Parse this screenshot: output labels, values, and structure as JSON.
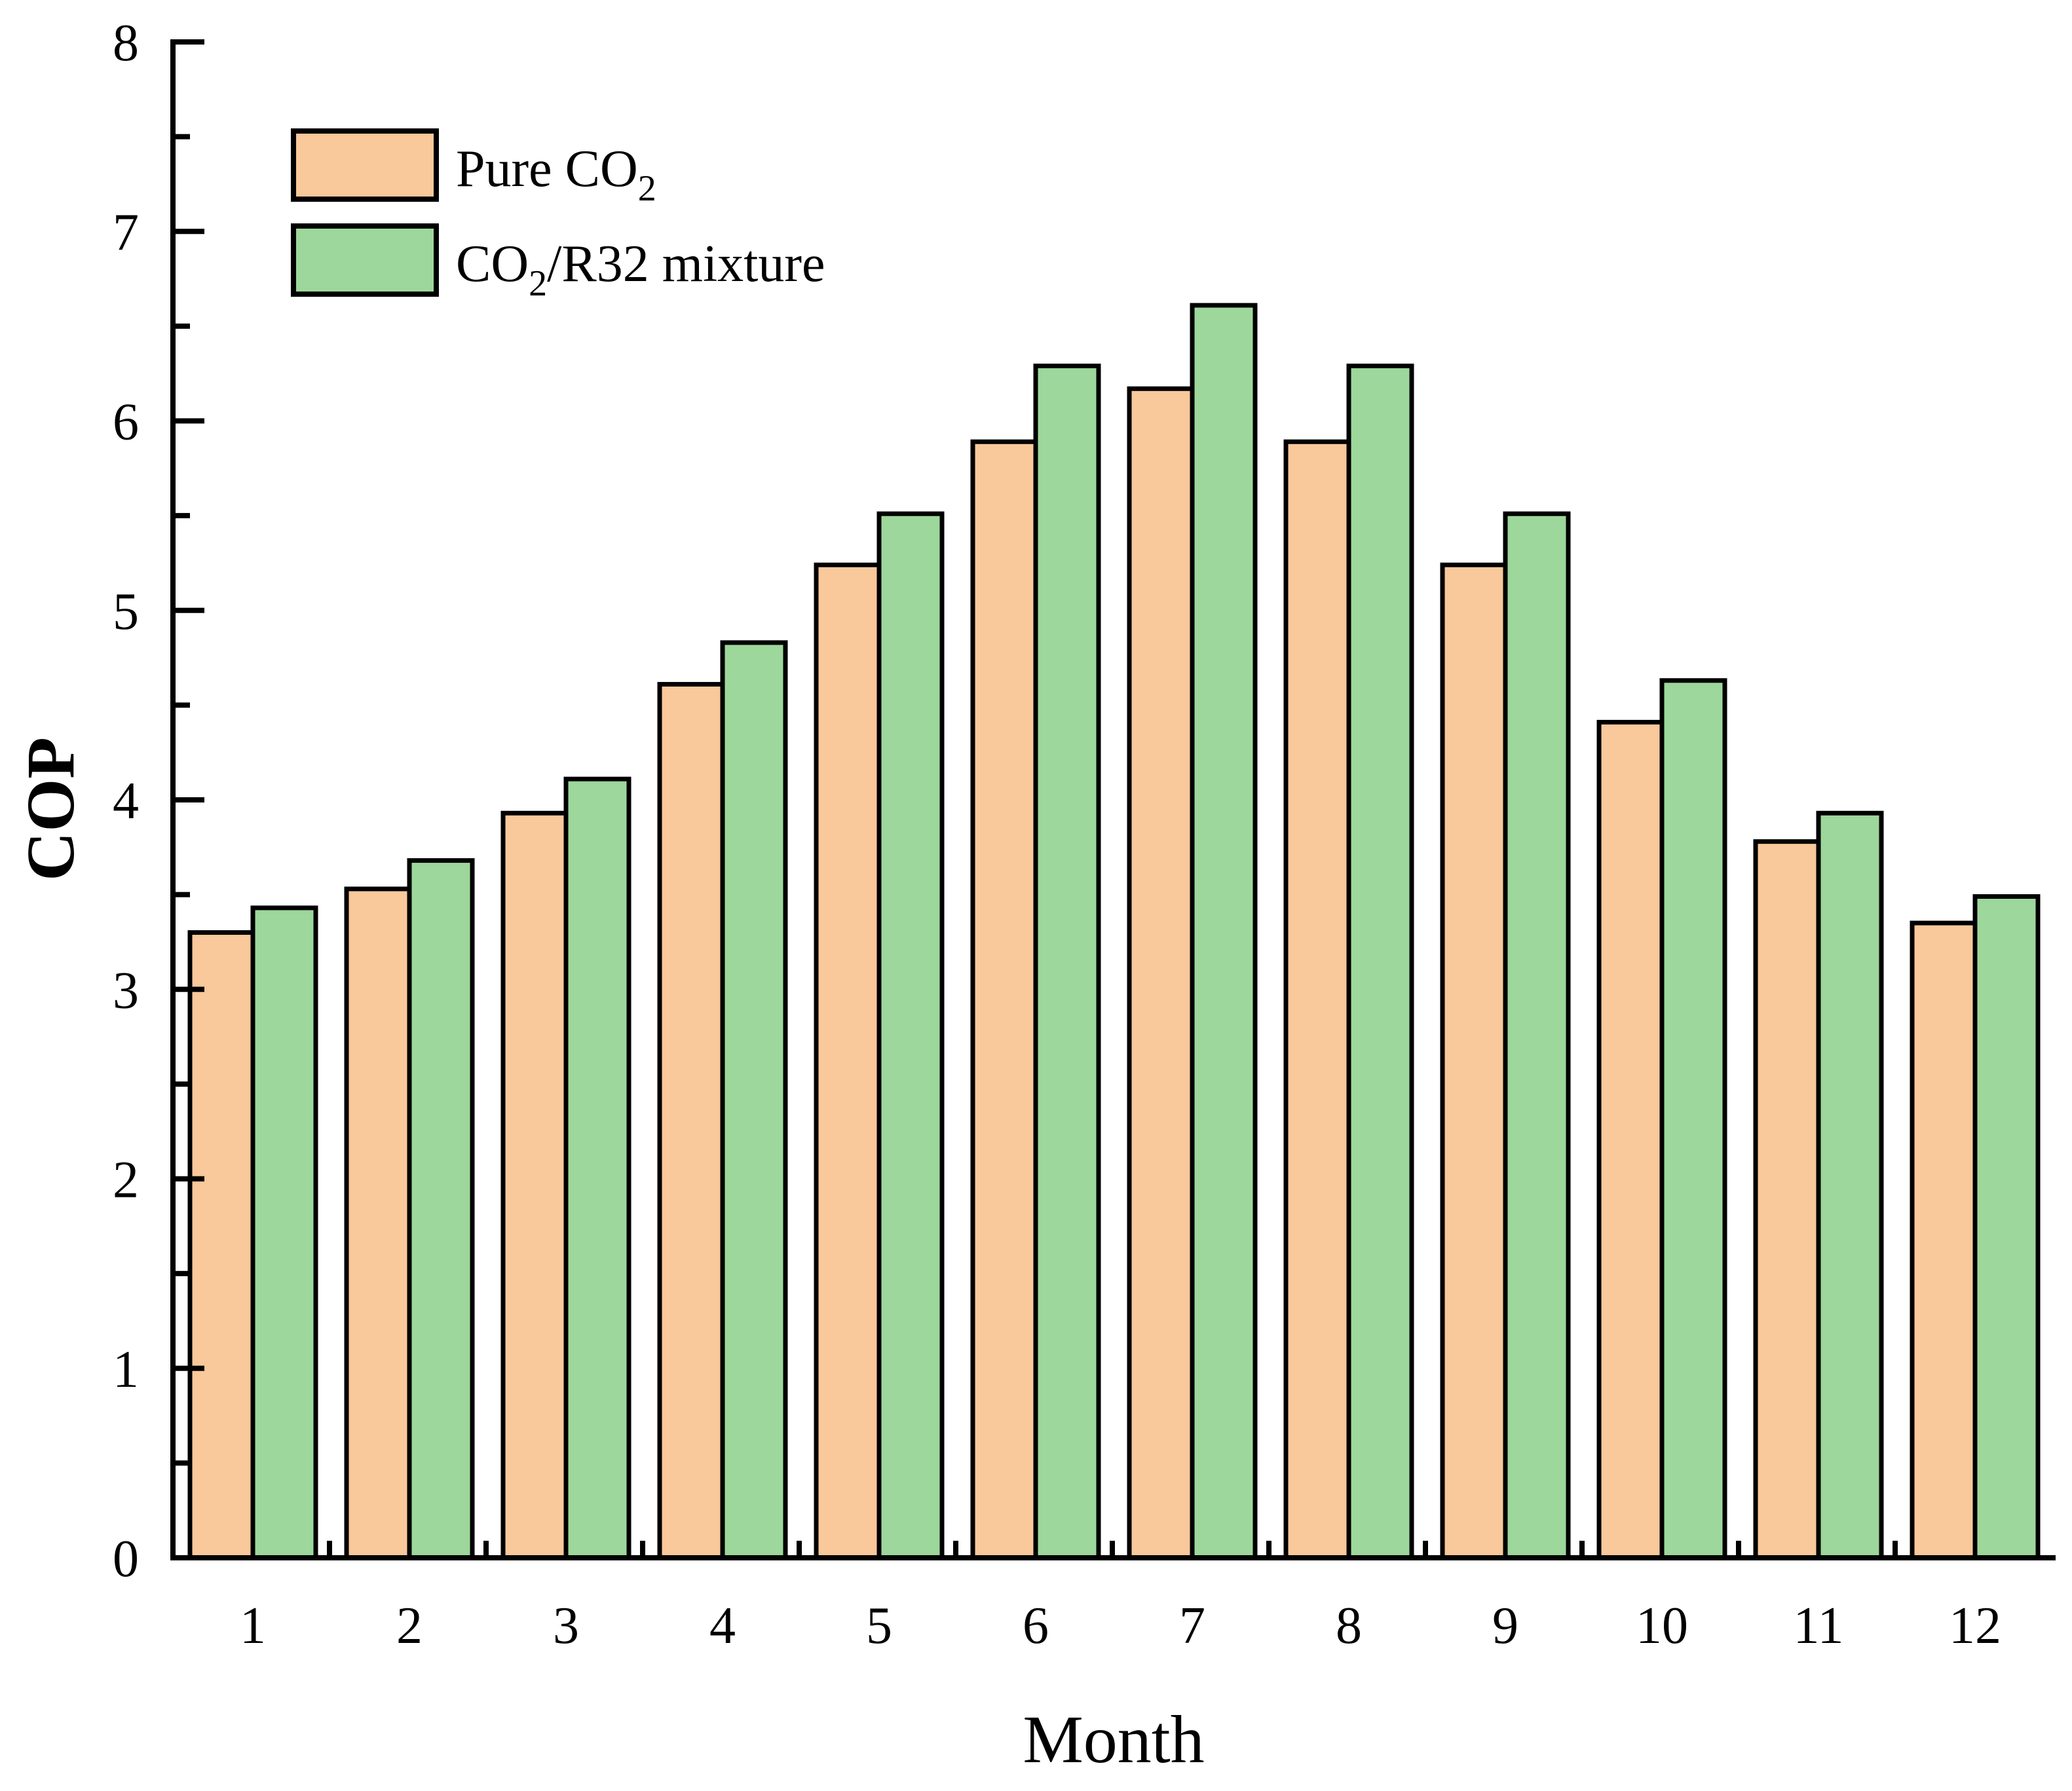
{
  "chart_data": {
    "type": "bar",
    "title": "",
    "xlabel": "Month",
    "ylabel": "COP",
    "ylim": [
      0,
      8
    ],
    "yticks": [
      "0",
      "1",
      "2",
      "3",
      "4",
      "5",
      "6",
      "7",
      "8"
    ],
    "categories": [
      "1",
      "2",
      "3",
      "4",
      "5",
      "6",
      "7",
      "8",
      "9",
      "10",
      "11",
      "12"
    ],
    "series": [
      {
        "name": "Pure CO2",
        "legend_main": "Pure CO",
        "legend_sub": "2",
        "color": "#F9C89B",
        "values": [
          3.3,
          3.53,
          3.93,
          4.61,
          5.24,
          5.89,
          6.17,
          5.89,
          5.24,
          4.41,
          3.78,
          3.35
        ]
      },
      {
        "name": "CO2/R32 mixture",
        "legend_pre": "CO",
        "legend_sub": "2",
        "legend_post": "/R32 mixture",
        "color": "#9DD79B",
        "values": [
          3.43,
          3.68,
          4.11,
          4.83,
          5.51,
          6.29,
          6.61,
          6.29,
          5.51,
          4.63,
          3.93,
          3.49
        ]
      }
    ],
    "legend_position": "top-left",
    "grid": false
  }
}
